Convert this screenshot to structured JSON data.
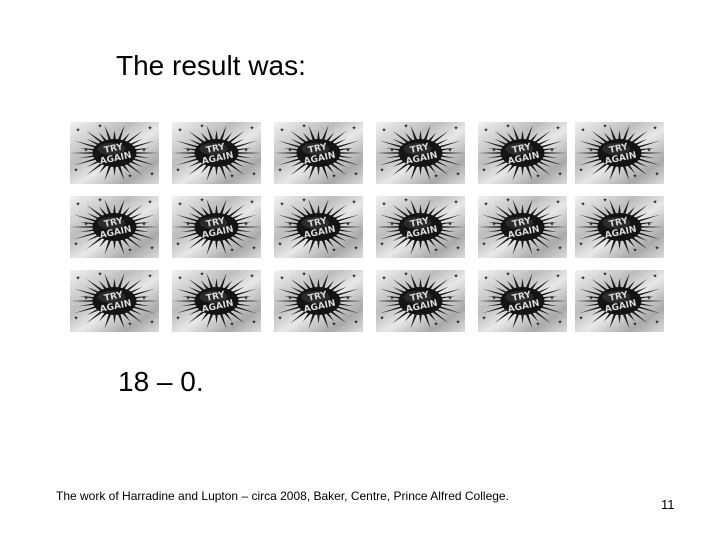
{
  "slide": {
    "title": "The result was:",
    "score": "18 – 0.",
    "footer": "The work of Harradine and Lupton – circa 2008, Baker, Centre, Prince Alfred College.",
    "page_number": "11"
  },
  "tiles": {
    "rows": 3,
    "columns": 6,
    "line1": "TRY",
    "line2": "AGAIN",
    "icon": "try-again-wrapper-icon"
  }
}
